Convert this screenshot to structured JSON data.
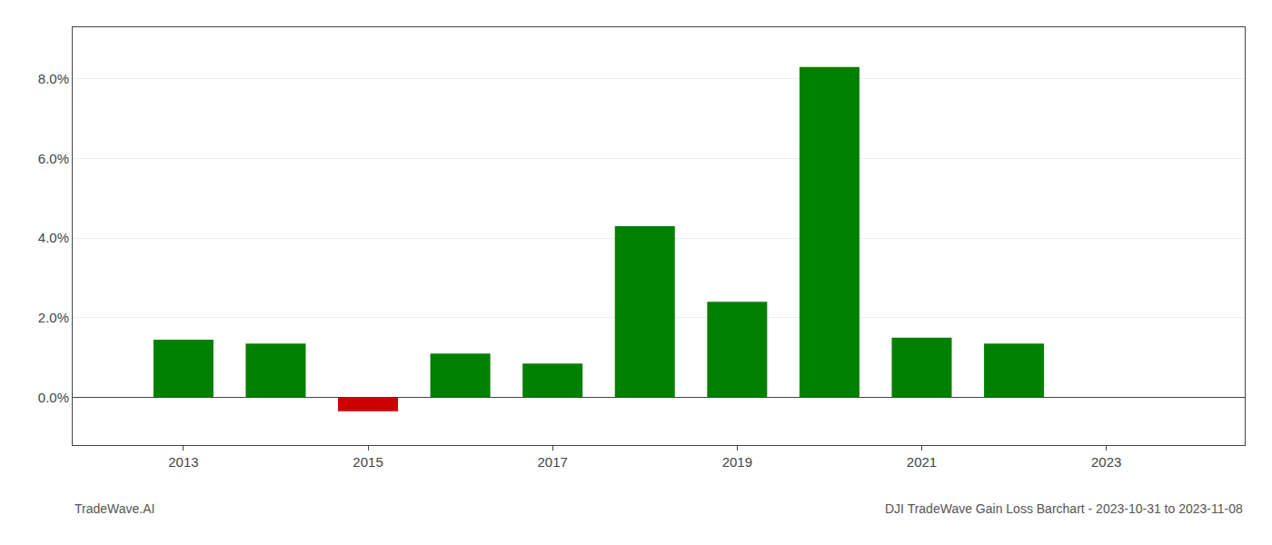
{
  "chart_data": {
    "type": "bar",
    "x": [
      2013,
      2014,
      2015,
      2016,
      2017,
      2018,
      2019,
      2020,
      2021,
      2022
    ],
    "values": [
      0.0145,
      0.0135,
      -0.0035,
      0.011,
      0.0085,
      0.043,
      0.024,
      0.083,
      0.015,
      0.0135
    ],
    "colors": [
      "#008000",
      "#008000",
      "#cc0000",
      "#008000",
      "#008000",
      "#008000",
      "#008000",
      "#008000",
      "#008000",
      "#008000"
    ],
    "xlim": [
      2011.8,
      2024.5
    ],
    "xticks": [
      2013,
      2015,
      2017,
      2019,
      2021,
      2023
    ],
    "ylim": [
      -0.012,
      0.093
    ],
    "yticks": [
      {
        "value": 0.0,
        "label": "0.0%"
      },
      {
        "value": 0.02,
        "label": "2.0%"
      },
      {
        "value": 0.04,
        "label": "4.0%"
      },
      {
        "value": 0.06,
        "label": "6.0%"
      },
      {
        "value": 0.08,
        "label": "8.0%"
      }
    ],
    "grid": true,
    "annotations": [
      "TradeWave.AI",
      "DJI TradeWave Gain Loss Barchart - 2023-10-31 to 2023-11-08"
    ]
  }
}
